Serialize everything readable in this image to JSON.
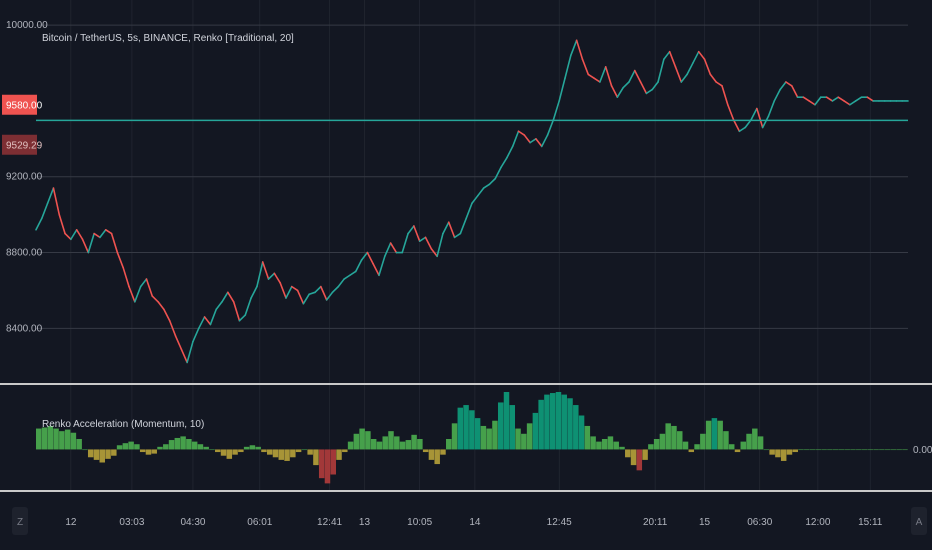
{
  "colors": {
    "background": "#131722",
    "grid": "#363a45",
    "separator": "#c9c9c9",
    "up": "#26a69a",
    "down": "#ef5350",
    "level_line": "#26a69a",
    "price_tag": "#ef5350",
    "last_tag": "#7d2e33",
    "momentum_up_strong": "#0e9f7c",
    "momentum_up": "#4caf50",
    "momentum_down": "#b8a23a",
    "momentum_down_strong": "#b23c3c"
  },
  "chart_data": [
    {
      "type": "line",
      "title": "Bitcoin / TetherUS, 5s, BINANCE, Renko [Traditional, 20]",
      "ylim": [
        8180,
        10080
      ],
      "yticks": [
        "10000.00",
        "9200.00",
        "8800.00",
        "8400.00"
      ],
      "ytick_values": [
        10000,
        9200,
        8800,
        8400
      ],
      "price_label": "9580.00",
      "price_value": 9580,
      "last_label": "9529.29",
      "last_value": 9529.29,
      "xticks": [
        "12",
        "03:03",
        "04:30",
        "06:01",
        "12:41",
        "13",
        "10:05",
        "14",
        "12:45",
        "20:11",
        "15",
        "06:30",
        "12:00",
        "15:11"
      ],
      "xtick_values": [
        12,
        33,
        54,
        77,
        101,
        113,
        132,
        151,
        180,
        213,
        230,
        249,
        269,
        287
      ],
      "x": [
        0,
        2,
        4,
        6,
        8,
        10,
        12,
        14,
        16,
        18,
        20,
        22,
        24,
        26,
        28,
        30,
        32,
        34,
        36,
        38,
        40,
        42,
        44,
        46,
        48,
        50,
        52,
        54,
        56,
        58,
        60,
        62,
        64,
        66,
        68,
        70,
        72,
        74,
        76,
        78,
        80,
        82,
        84,
        86,
        88,
        90,
        92,
        94,
        96,
        98,
        100,
        102,
        104,
        106,
        108,
        110,
        112,
        114,
        116,
        118,
        120,
        122,
        124,
        126,
        128,
        130,
        132,
        134,
        136,
        138,
        140,
        142,
        144,
        146,
        148,
        150,
        152,
        154,
        156,
        158,
        160,
        162,
        164,
        166,
        168,
        170,
        172,
        174,
        176,
        178,
        180,
        182,
        184,
        186,
        188,
        190,
        192,
        194,
        196,
        198,
        200,
        202,
        204,
        206,
        208,
        210,
        212,
        214,
        216,
        218,
        220,
        222,
        224,
        226,
        228,
        230,
        232,
        234,
        236,
        238,
        240,
        242,
        244,
        246,
        248,
        250,
        252,
        254,
        256,
        258,
        260,
        262,
        264,
        266,
        268,
        270,
        272,
        274,
        276,
        278,
        280,
        282,
        284,
        286,
        288,
        290,
        292,
        294,
        296,
        298,
        300
      ],
      "series": [
        {
          "values": [
            8920,
            8980,
            9060,
            9140,
            9000,
            8900,
            8870,
            8920,
            8870,
            8800,
            8900,
            8880,
            8920,
            8900,
            8800,
            8720,
            8620,
            8540,
            8620,
            8660,
            8570,
            8540,
            8500,
            8440,
            8360,
            8290,
            8220,
            8330,
            8400,
            8460,
            8420,
            8500,
            8540,
            8590,
            8540,
            8440,
            8470,
            8560,
            8620,
            8750,
            8660,
            8690,
            8640,
            8560,
            8620,
            8600,
            8530,
            8580,
            8590,
            8620,
            8550,
            8590,
            8620,
            8660,
            8680,
            8700,
            8760,
            8800,
            8740,
            8680,
            8780,
            8850,
            8800,
            8800,
            8900,
            8940,
            8860,
            8880,
            8820,
            8780,
            8900,
            8960,
            8880,
            8900,
            8980,
            9060,
            9100,
            9140,
            9160,
            9190,
            9250,
            9300,
            9360,
            9440,
            9420,
            9380,
            9400,
            9360,
            9420,
            9500,
            9600,
            9720,
            9840,
            9920,
            9820,
            9740,
            9720,
            9700,
            9780,
            9680,
            9620,
            9670,
            9700,
            9760,
            9700,
            9640,
            9660,
            9700,
            9820,
            9860,
            9780,
            9700,
            9740,
            9800,
            9860,
            9820,
            9740,
            9700,
            9680,
            9580,
            9500,
            9440,
            9460,
            9500,
            9560,
            9460,
            9520,
            9600,
            9660,
            9700,
            9680,
            9620,
            9620,
            9600,
            9580,
            9620,
            9620,
            9600,
            9620,
            9600,
            9580,
            9600,
            9620,
            9620,
            9600,
            9600,
            9600,
            9600,
            9600,
            9600,
            9600
          ]
        }
      ]
    },
    {
      "type": "bar",
      "title": "Renko Acceleration (Momentum, 10)",
      "zero_label": "0.00",
      "ylim": [
        -70,
        110
      ],
      "values": [
        40,
        42,
        45,
        40,
        35,
        38,
        32,
        20,
        0,
        -15,
        -20,
        -25,
        -18,
        -12,
        8,
        12,
        15,
        10,
        -5,
        -10,
        -8,
        5,
        10,
        18,
        22,
        25,
        20,
        15,
        10,
        5,
        0,
        -5,
        -12,
        -18,
        -10,
        -5,
        5,
        8,
        5,
        -5,
        -10,
        -15,
        -20,
        -22,
        -15,
        -5,
        0,
        -10,
        -30,
        -55,
        -65,
        -48,
        -20,
        -5,
        15,
        30,
        40,
        35,
        20,
        15,
        25,
        35,
        25,
        15,
        18,
        28,
        20,
        -5,
        -20,
        -28,
        -10,
        20,
        50,
        80,
        85,
        75,
        60,
        45,
        40,
        55,
        90,
        110,
        85,
        40,
        30,
        50,
        70,
        95,
        105,
        108,
        110,
        105,
        98,
        85,
        65,
        45,
        25,
        15,
        20,
        25,
        15,
        5,
        -15,
        -30,
        -40,
        -20,
        10,
        20,
        30,
        50,
        45,
        35,
        15,
        -5,
        10,
        30,
        55,
        60,
        55,
        35,
        10,
        -5,
        15,
        30,
        40,
        25,
        0,
        -10,
        -15,
        -22,
        -10,
        -5,
        0,
        0,
        0,
        0,
        0,
        0,
        0,
        0,
        0,
        0,
        0,
        0,
        0,
        0,
        0,
        0,
        0,
        0,
        0
      ]
    }
  ],
  "bottom_bar": {
    "left_icon": "Z",
    "right_icon": "A"
  }
}
